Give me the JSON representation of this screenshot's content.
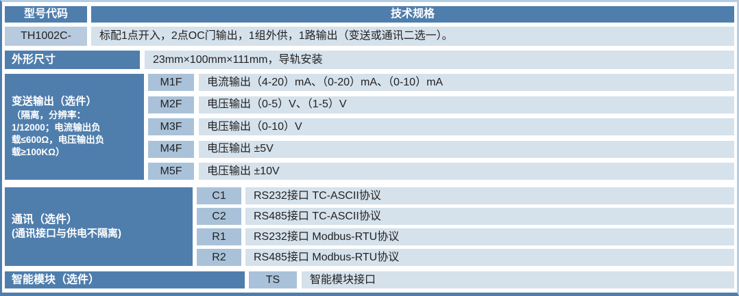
{
  "theme": {
    "dark_blue": "#4f7ead",
    "code_blue": "#a9c2d9",
    "light_blue": "#d5e1eb",
    "model_cell_blue": "#b7cade"
  },
  "header": {
    "model_code_label": "型号代码",
    "tech_spec_label": "技术规格"
  },
  "model_row": {
    "code": "TH1002C-",
    "description": "标配1点开入，2点OC门输出，1组外供，1路输出（变送或通讯二选一）。"
  },
  "dimension_row": {
    "label": "外形尺寸",
    "value": "23mm×100mm×111mm，导轨安装"
  },
  "transmit_section": {
    "label": "变送输出（选件）",
    "note_lines": [
      "（隔离，分辨率：",
      "1/12000；电流输出负",
      "载≤600Ω，电压输出负",
      "载≥100KΩ）"
    ],
    "options": [
      {
        "code": "M1F",
        "description": "电流输出（4-20）mA、（0-20）mA、（0-10）mA"
      },
      {
        "code": "M2F",
        "description": "电压输出（0-5）V、（1-5）V"
      },
      {
        "code": "M3F",
        "description": "电压输出（0-10）V"
      },
      {
        "code": "M4F",
        "description": "电压输出 ±5V"
      },
      {
        "code": "M5F",
        "description": "电压输出 ±10V"
      }
    ]
  },
  "comm_section": {
    "label_line1": "通讯（选件）",
    "label_line2": "(通讯接口与供电不隔离)",
    "options": [
      {
        "code": "C1",
        "description": "RS232接口 TC-ASCII协议"
      },
      {
        "code": "C2",
        "description": "RS485接口 TC-ASCII协议"
      },
      {
        "code": "R1",
        "description": "RS232接口 Modbus-RTU协议"
      },
      {
        "code": "R2",
        "description": "RS485接口 Modbus-RTU协议"
      }
    ]
  },
  "module_row": {
    "label": "智能模块（选件）",
    "code": "TS",
    "description": "智能模块接口"
  }
}
